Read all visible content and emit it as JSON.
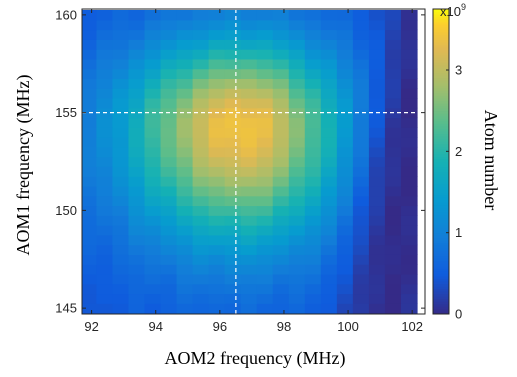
{
  "chart_data": {
    "type": "heatmap",
    "xlabel": "AOM2 frequency (MHz)",
    "ylabel": "AOM1 frequency (MHz)",
    "colorbar_label": "Atom number",
    "colorbar_multiplier": "x10",
    "colorbar_exponent": "9",
    "xlim": [
      91.7,
      102.4
    ],
    "ylim": [
      144.7,
      160.3
    ],
    "x_ticks": [
      92,
      94,
      96,
      98,
      100,
      102
    ],
    "y_ticks": [
      145,
      150,
      155,
      160
    ],
    "colorbar_range": [
      0,
      3.75
    ],
    "colorbar_ticks": [
      0,
      1,
      2,
      3
    ],
    "colormap": "parula",
    "grid": false,
    "crosshair": {
      "x": 96.5,
      "y": 155
    },
    "x_centers": [
      91.9,
      92.4,
      92.9,
      93.4,
      93.9,
      94.4,
      94.9,
      95.4,
      95.9,
      96.4,
      96.9,
      97.4,
      97.9,
      98.4,
      98.9,
      99.4,
      99.9,
      100.4,
      100.9,
      101.4,
      101.9
    ],
    "y_centers": [
      145,
      145.5,
      146,
      146.5,
      147,
      147.5,
      148,
      148.5,
      149,
      149.5,
      150,
      150.5,
      151,
      151.5,
      152,
      152.5,
      153,
      153.5,
      154,
      154.5,
      155,
      155.5,
      156,
      156.5,
      157,
      157.5,
      158,
      158.5,
      159,
      159.5,
      160
    ],
    "model": {
      "peak": 3.45,
      "center_x": 96.7,
      "center_y": 154.3,
      "sigma_x_left": 2.6,
      "sigma_x_right": 2.2,
      "sigma_y_low": 4.2,
      "sigma_y_high": 3.2,
      "floor": 0.4,
      "cutoff_x": 100.6,
      "cutoff_slope_x_per_mhz": 0.09,
      "cutoff_center_y": 152.0,
      "cutoff_width": 0.25,
      "cut_floor": 0.05
    }
  }
}
